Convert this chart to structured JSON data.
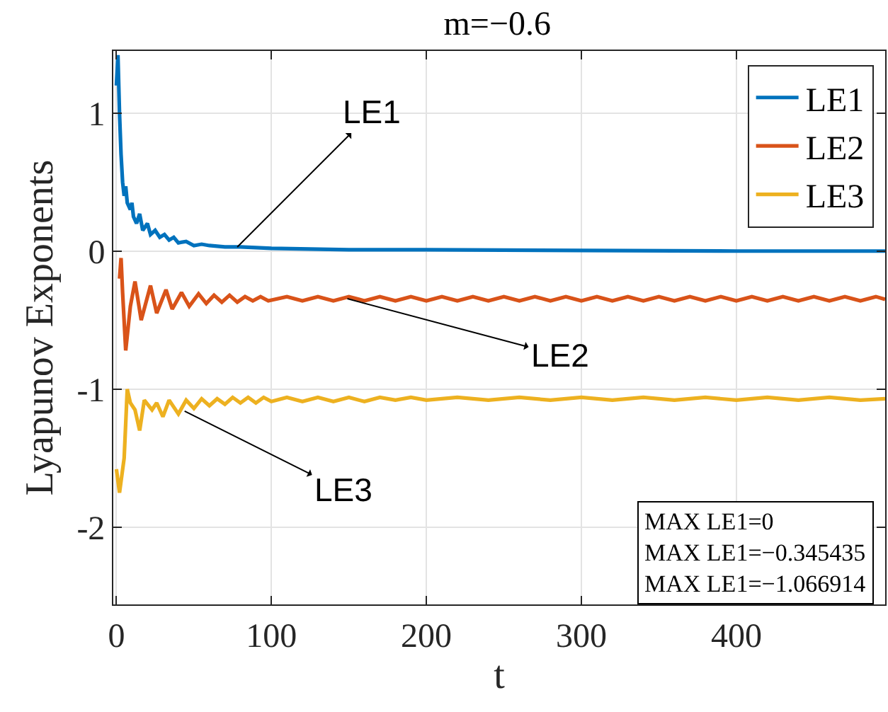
{
  "chart_data": {
    "type": "line",
    "title": "m=−0.6",
    "xlabel": "t",
    "ylabel": "Lyapunov Exponents",
    "xlim": [
      -2,
      496
    ],
    "ylim": [
      -2.56,
      1.45
    ],
    "xticks": [
      0,
      100,
      200,
      300,
      400
    ],
    "yticks": [
      {
        "value": -2,
        "label": "-2"
      },
      {
        "value": -1,
        "label": "-1"
      },
      0,
      1
    ],
    "grid": true,
    "legend": "top right",
    "line_style": "solid",
    "marker": "none",
    "series": [
      {
        "name": "LE1",
        "color": "#0072bd",
        "x": [
          0,
          1,
          2,
          3,
          4,
          5,
          6,
          7,
          9,
          10,
          11,
          13,
          15,
          17,
          20,
          22,
          25,
          28,
          31,
          34,
          37,
          40,
          45,
          50,
          55,
          60,
          70,
          80,
          100,
          150,
          200,
          300,
          400,
          496
        ],
        "values": [
          1.2,
          1.42,
          1.0,
          0.7,
          0.5,
          0.4,
          0.47,
          0.35,
          0.3,
          0.35,
          0.25,
          0.2,
          0.27,
          0.15,
          0.2,
          0.12,
          0.15,
          0.1,
          0.12,
          0.08,
          0.1,
          0.06,
          0.07,
          0.04,
          0.05,
          0.04,
          0.03,
          0.03,
          0.02,
          0.01,
          0.01,
          0.005,
          0,
          0
        ]
      },
      {
        "name": "LE2",
        "color": "#d95319",
        "x": [
          2,
          3,
          4,
          6,
          9,
          12,
          16,
          22,
          26,
          32,
          36,
          42,
          47,
          53,
          58,
          63,
          68,
          73,
          78,
          83,
          88,
          93,
          98,
          110,
          120,
          130,
          140,
          150,
          160,
          170,
          180,
          190,
          200,
          210,
          220,
          230,
          240,
          250,
          260,
          270,
          280,
          290,
          300,
          310,
          320,
          330,
          340,
          350,
          360,
          370,
          380,
          390,
          400,
          410,
          420,
          430,
          440,
          450,
          460,
          470,
          480,
          490,
          496
        ],
        "values": [
          -0.2,
          -0.05,
          -0.3,
          -0.72,
          -0.4,
          -0.22,
          -0.5,
          -0.25,
          -0.45,
          -0.28,
          -0.42,
          -0.3,
          -0.4,
          -0.31,
          -0.38,
          -0.32,
          -0.37,
          -0.32,
          -0.37,
          -0.33,
          -0.36,
          -0.33,
          -0.36,
          -0.33,
          -0.36,
          -0.33,
          -0.36,
          -0.33,
          -0.36,
          -0.33,
          -0.36,
          -0.33,
          -0.36,
          -0.33,
          -0.36,
          -0.33,
          -0.36,
          -0.33,
          -0.36,
          -0.33,
          -0.36,
          -0.33,
          -0.36,
          -0.33,
          -0.36,
          -0.33,
          -0.36,
          -0.33,
          -0.36,
          -0.33,
          -0.36,
          -0.33,
          -0.36,
          -0.33,
          -0.36,
          -0.33,
          -0.36,
          -0.33,
          -0.36,
          -0.33,
          -0.36,
          -0.33,
          -0.35
        ]
      },
      {
        "name": "LE3",
        "color": "#edb120",
        "x": [
          0,
          2,
          5,
          7,
          9,
          12,
          15,
          18,
          23,
          26,
          30,
          34,
          40,
          45,
          50,
          55,
          60,
          65,
          70,
          75,
          80,
          85,
          90,
          95,
          100,
          110,
          120,
          130,
          140,
          150,
          160,
          170,
          180,
          190,
          200,
          220,
          240,
          260,
          280,
          300,
          320,
          340,
          360,
          380,
          400,
          420,
          440,
          460,
          480,
          496
        ],
        "values": [
          -1.58,
          -1.75,
          -1.5,
          -1.0,
          -1.1,
          -1.15,
          -1.3,
          -1.08,
          -1.15,
          -1.1,
          -1.2,
          -1.08,
          -1.18,
          -1.08,
          -1.14,
          -1.07,
          -1.12,
          -1.07,
          -1.11,
          -1.06,
          -1.1,
          -1.06,
          -1.1,
          -1.06,
          -1.09,
          -1.06,
          -1.09,
          -1.06,
          -1.09,
          -1.06,
          -1.09,
          -1.06,
          -1.08,
          -1.06,
          -1.08,
          -1.06,
          -1.08,
          -1.06,
          -1.08,
          -1.06,
          -1.08,
          -1.06,
          -1.08,
          -1.06,
          -1.08,
          -1.06,
          -1.08,
          -1.06,
          -1.08,
          -1.07
        ]
      }
    ],
    "annotations": [
      {
        "text": "LE1",
        "x": 78,
        "y": 0.03
      },
      {
        "text": "LE2",
        "x": 149,
        "y": -0.345
      },
      {
        "text": "LE3",
        "x": 44,
        "y": -1.16
      },
      "MAX LE1=0\nMAX LE1=−0.345435\nMAX LE1=−1.066914"
    ]
  }
}
